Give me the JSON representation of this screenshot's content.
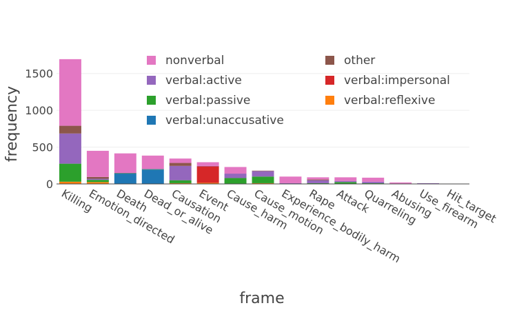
{
  "chart_data": {
    "type": "bar",
    "stacked": true,
    "title": "",
    "xlabel": "frame",
    "ylabel": "frequency",
    "ylim": [
      0,
      1750
    ],
    "yticks": [
      0,
      500,
      1000,
      1500
    ],
    "grid": true,
    "legend_placement": "top-center",
    "categories": [
      "Killing",
      "Emotion_directed",
      "Death",
      "Dead_or_alive",
      "Causation",
      "Event",
      "Cause_harm",
      "Cause_motion",
      "Experience_bodily_harm",
      "Rape",
      "Attack",
      "Quarreling",
      "Abusing",
      "Use_firearm",
      "Hit_target"
    ],
    "series": [
      {
        "name": "verbal:reflexive",
        "color": "#ff7f0e",
        "values": [
          30,
          25,
          0,
          0,
          10,
          15,
          5,
          10,
          0,
          0,
          0,
          0,
          0,
          0,
          0
        ]
      },
      {
        "name": "verbal:unaccusative",
        "color": "#1f77b4",
        "values": [
          0,
          0,
          140,
          195,
          0,
          0,
          0,
          0,
          0,
          0,
          0,
          0,
          0,
          0,
          0
        ]
      },
      {
        "name": "verbal:passive",
        "color": "#2ca02c",
        "values": [
          245,
          30,
          5,
          5,
          40,
          0,
          75,
          90,
          5,
          10,
          25,
          10,
          0,
          5,
          0
        ]
      },
      {
        "name": "verbal:impersonal",
        "color": "#d62728",
        "values": [
          0,
          0,
          0,
          0,
          0,
          225,
          0,
          0,
          0,
          0,
          0,
          0,
          0,
          0,
          0
        ]
      },
      {
        "name": "verbal:active",
        "color": "#9467bd",
        "values": [
          410,
          15,
          5,
          5,
          195,
          5,
          60,
          75,
          5,
          40,
          15,
          20,
          5,
          5,
          3
        ]
      },
      {
        "name": "other",
        "color": "#8c564b",
        "values": [
          105,
          25,
          0,
          0,
          40,
          0,
          0,
          5,
          0,
          10,
          0,
          0,
          0,
          0,
          0
        ]
      },
      {
        "name": "nonverbal",
        "color": "#e377c2",
        "values": [
          905,
          355,
          265,
          180,
          60,
          50,
          90,
          0,
          90,
          30,
          50,
          55,
          15,
          0,
          0
        ]
      }
    ]
  },
  "legend": {
    "column1": [
      "nonverbal",
      "verbal:active",
      "verbal:passive",
      "verbal:unaccusative"
    ],
    "column2": [
      "other",
      "verbal:impersonal",
      "verbal:reflexive"
    ]
  }
}
